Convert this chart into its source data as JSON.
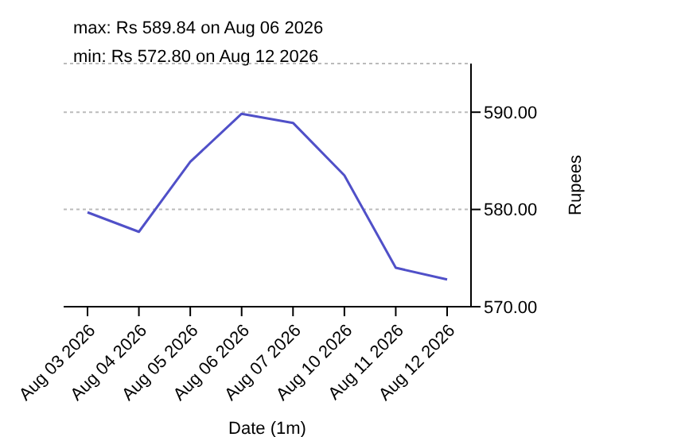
{
  "chart_data": {
    "type": "line",
    "title": "max: Rs 589.84 on Aug 06 2026",
    "subtitle": "min: Rs 572.80 on Aug 12 2026",
    "xlabel": "Date (1m)",
    "ylabel": "Rupees",
    "categories": [
      "Aug 03 2026",
      "Aug 04 2026",
      "Aug 05 2026",
      "Aug 06 2026",
      "Aug 07 2026",
      "Aug 10 2026",
      "Aug 11 2026",
      "Aug 12 2026"
    ],
    "series": [
      {
        "color": "#5050c8",
        "values": [
          579.7,
          577.7,
          584.9,
          589.84,
          588.9,
          583.5,
          574.0,
          572.8
        ]
      }
    ],
    "ylim": [
      570,
      595
    ],
    "yticks": [
      {
        "value": 570,
        "label": "570.00"
      },
      {
        "value": 580,
        "label": "580.00"
      },
      {
        "value": 590,
        "label": "590.00"
      }
    ],
    "grid": "y",
    "marker": "none",
    "line_style": "solid"
  }
}
